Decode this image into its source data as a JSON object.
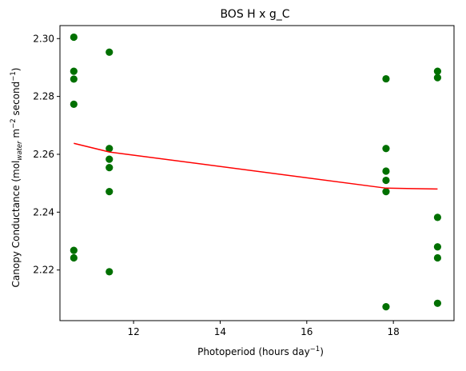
{
  "chart_data": {
    "type": "scatter",
    "title": "BOS H x g_C",
    "xlabel": {
      "main": "Photoperiod (hours day",
      "sup": "−1",
      "end": ")"
    },
    "ylabel": {
      "p1": "Canopy Conductance (mol",
      "sub1": "water",
      "p2": " m",
      "sup2": "−2",
      "p3": " second",
      "sup3": "−1",
      "p4": ")"
    },
    "xlim": [
      10.3,
      19.4
    ],
    "ylim": [
      2.2025,
      2.3045
    ],
    "xticks": [
      {
        "value": 12,
        "label": "12"
      },
      {
        "value": 14,
        "label": "14"
      },
      {
        "value": 16,
        "label": "16"
      },
      {
        "value": 18,
        "label": "18"
      }
    ],
    "yticks": [
      {
        "value": 2.22,
        "label": "2.22"
      },
      {
        "value": 2.24,
        "label": "2.24"
      },
      {
        "value": 2.26,
        "label": "2.26"
      },
      {
        "value": 2.28,
        "label": "2.28"
      },
      {
        "value": 2.3,
        "label": "2.30"
      }
    ],
    "grid": false,
    "colors": {
      "points": "#007000",
      "fit_line": "#ff0000",
      "axes": "#000000"
    },
    "series": [
      {
        "type": "scatter",
        "points": [
          {
            "x": 10.62,
            "y": 2.3005
          },
          {
            "x": 10.62,
            "y": 2.2887
          },
          {
            "x": 10.62,
            "y": 2.286
          },
          {
            "x": 10.62,
            "y": 2.2773
          },
          {
            "x": 10.62,
            "y": 2.2268
          },
          {
            "x": 10.62,
            "y": 2.2242
          },
          {
            "x": 11.44,
            "y": 2.2953
          },
          {
            "x": 11.44,
            "y": 2.262
          },
          {
            "x": 11.44,
            "y": 2.2583
          },
          {
            "x": 11.44,
            "y": 2.2554
          },
          {
            "x": 11.44,
            "y": 2.2471
          },
          {
            "x": 11.44,
            "y": 2.2194
          },
          {
            "x": 17.83,
            "y": 2.2861
          },
          {
            "x": 17.83,
            "y": 2.262
          },
          {
            "x": 17.83,
            "y": 2.2542
          },
          {
            "x": 17.83,
            "y": 2.251
          },
          {
            "x": 17.83,
            "y": 2.2471
          },
          {
            "x": 17.83,
            "y": 2.2073
          },
          {
            "x": 19.02,
            "y": 2.2887
          },
          {
            "x": 19.02,
            "y": 2.2865
          },
          {
            "x": 19.02,
            "y": 2.2382
          },
          {
            "x": 19.02,
            "y": 2.228
          },
          {
            "x": 19.02,
            "y": 2.2242
          },
          {
            "x": 19.02,
            "y": 2.2085
          }
        ]
      },
      {
        "type": "line",
        "points": [
          {
            "x": 10.62,
            "y": 2.2638
          },
          {
            "x": 11.44,
            "y": 2.2608
          },
          {
            "x": 17.83,
            "y": 2.2483
          },
          {
            "x": 19.02,
            "y": 2.248
          }
        ]
      }
    ]
  }
}
